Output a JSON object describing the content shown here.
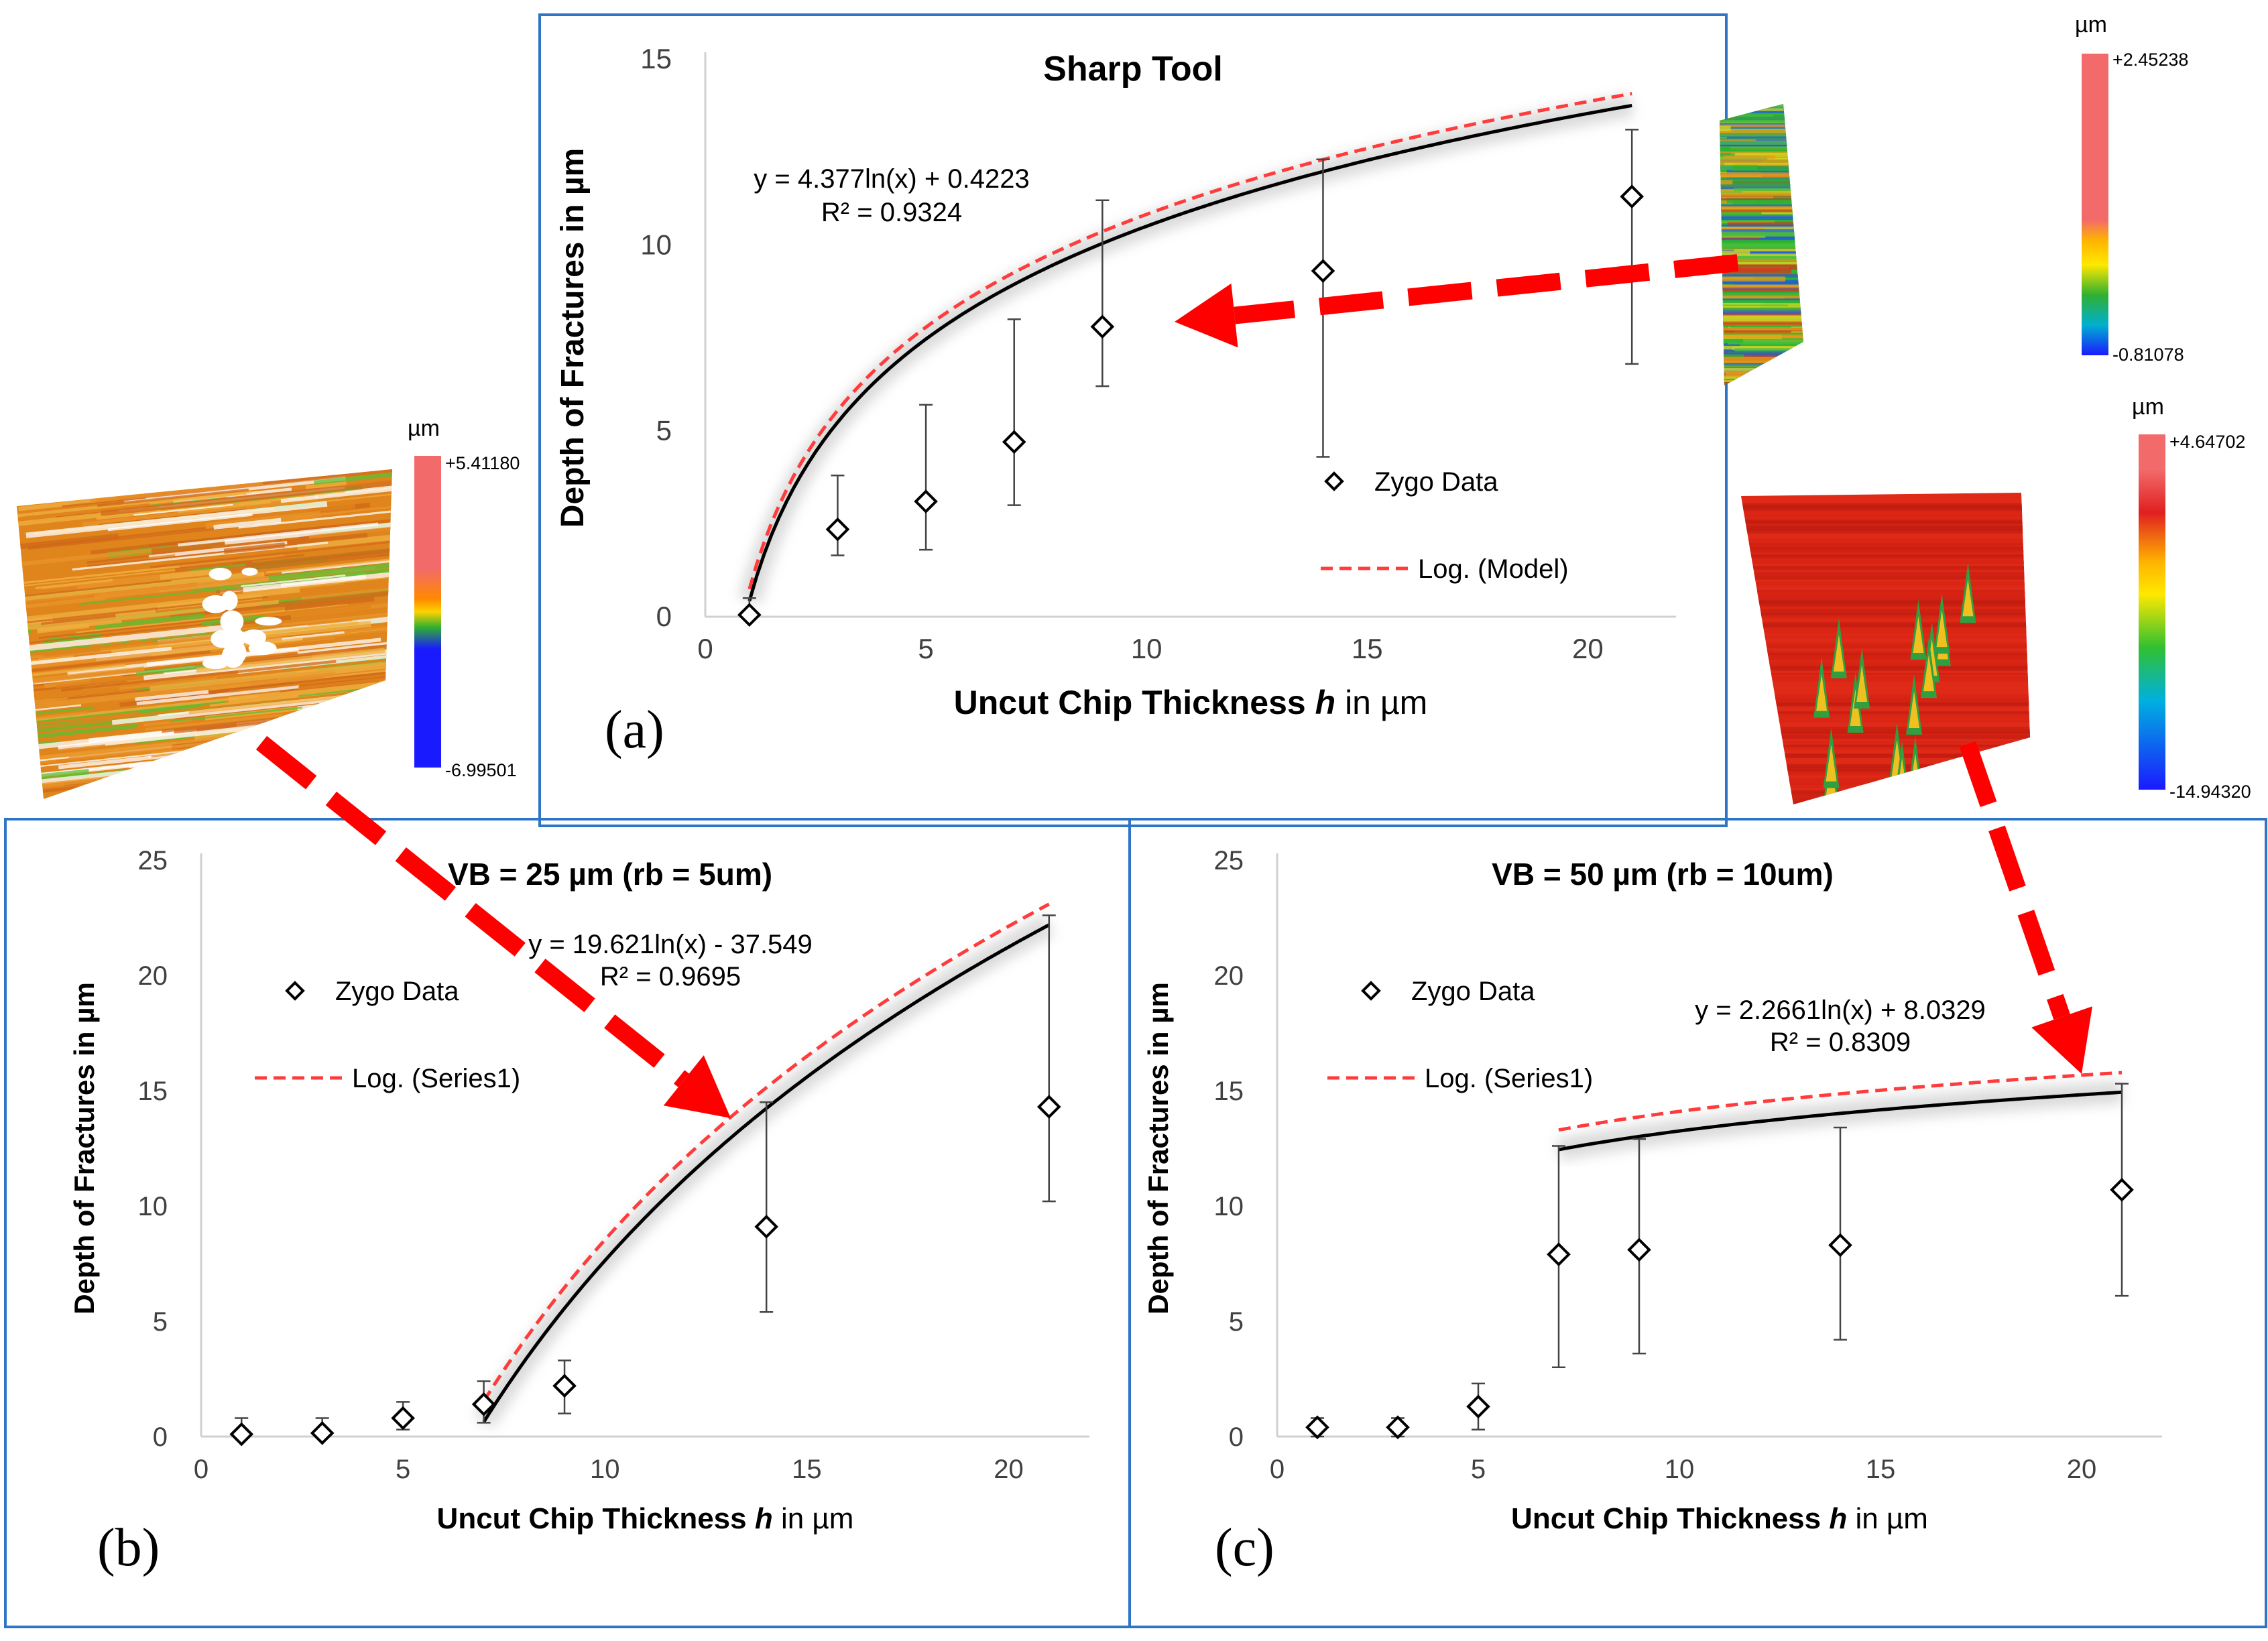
{
  "chart_data": [
    {
      "panel_label": "(a)",
      "type": "scatter",
      "title": "Sharp Tool",
      "xlabel_prefix": "Uncut Chip Thickness ",
      "xlabel_var": "h",
      "xlabel_suffix": " in µm",
      "ylabel": "Depth of Fractures in µm",
      "xlim": [
        0,
        22
      ],
      "ylim": [
        0,
        15
      ],
      "xticks": [
        0,
        5,
        10,
        15,
        20
      ],
      "yticks": [
        0,
        5,
        10,
        15
      ],
      "grid": false,
      "series": [
        {
          "name": "Zygo Data",
          "x": [
            1,
            3,
            5,
            7,
            9,
            14,
            21
          ],
          "y": [
            0.05,
            2.35,
            3.1,
            4.7,
            7.8,
            9.3,
            11.3
          ],
          "err_low": [
            0.05,
            1.65,
            1.8,
            3.0,
            6.2,
            4.3,
            6.8
          ],
          "err_high": [
            0.5,
            3.8,
            5.7,
            8.0,
            11.2,
            12.3,
            13.1
          ]
        }
      ],
      "fit": {
        "a": 4.377,
        "b": 0.4223,
        "x_from": 1,
        "x_to": 21,
        "model_offset": 0.32
      },
      "model_name": "Log. (Model)",
      "equation": "y = 4.377ln(x) + 0.4223",
      "r2": "R² = 0.9324",
      "inset": {
        "unit": "µm",
        "max": "+2.45238",
        "min": "-0.81078",
        "bar_colors": [
          "#f26a6a",
          "#f26a6a",
          "#ffb400",
          "#ffe800",
          "#30b030",
          "#00b0d0",
          "#1a1aff"
        ],
        "surface_colors": [
          "#2fb32f",
          "#49c240",
          "#d8d820",
          "#e89a18",
          "#d03a1c",
          "#1c5fd8"
        ]
      }
    },
    {
      "panel_label": "(b)",
      "type": "scatter",
      "title": "VB = 25 µm (rb = 5um)",
      "xlabel_prefix": "Uncut Chip Thickness ",
      "xlabel_var": "h",
      "xlabel_suffix": " in µm",
      "ylabel": "Depth of Fractures in µm",
      "xlim": [
        0,
        22
      ],
      "ylim": [
        0,
        25
      ],
      "xticks": [
        0,
        5,
        10,
        15,
        20
      ],
      "yticks": [
        0,
        5,
        10,
        15,
        20,
        25
      ],
      "grid": false,
      "series": [
        {
          "name": "Zygo Data",
          "x": [
            1,
            3,
            5,
            7,
            9,
            14,
            21
          ],
          "y": [
            0.1,
            0.15,
            0.8,
            1.4,
            2.2,
            9.1,
            14.3
          ],
          "err_low": [
            0.0,
            0.0,
            0.3,
            0.6,
            1.0,
            5.4,
            10.2
          ],
          "err_high": [
            0.8,
            0.8,
            1.5,
            2.4,
            3.3,
            14.5,
            22.6
          ]
        }
      ],
      "fit": {
        "a": 19.621,
        "b": -37.549,
        "x_from": 7,
        "x_to": 21,
        "model_offset": 0.9
      },
      "model_name": "Log. (Series1)",
      "equation": "y = 19.621ln(x) - 37.549",
      "r2": "R² = 0.9695",
      "inset": {
        "unit": "µm",
        "max": "+5.41180",
        "min": "-6.99501",
        "bar_colors": [
          "#f26a6a",
          "#f26a6a",
          "#ff8a00",
          "#ffd200",
          "#30b030",
          "#1a1aff",
          "#1a1aff"
        ],
        "surface_colors": [
          "#e0841c",
          "#e8942a",
          "#d06818",
          "#5cbf30",
          "#f0b040",
          "#ffffff"
        ]
      }
    },
    {
      "panel_label": "(c)",
      "type": "scatter",
      "title": "VB = 50 µm (rb = 10um)",
      "xlabel_prefix": "Uncut Chip Thickness ",
      "xlabel_var": "h",
      "xlabel_suffix": " in µm",
      "ylabel": "Depth of Fractures in µm",
      "xlim": [
        0,
        22
      ],
      "ylim": [
        0,
        25
      ],
      "xticks": [
        0,
        5,
        10,
        15,
        20
      ],
      "yticks": [
        0,
        5,
        10,
        15,
        20,
        25
      ],
      "grid": false,
      "series": [
        {
          "name": "Zygo Data",
          "x": [
            1,
            3,
            5,
            7,
            9,
            14,
            21
          ],
          "y": [
            0.4,
            0.4,
            1.3,
            7.9,
            8.1,
            8.3,
            10.7
          ],
          "err_low": [
            0.0,
            0.0,
            0.3,
            3.0,
            3.6,
            4.2,
            6.1
          ],
          "err_high": [
            0.8,
            0.8,
            2.3,
            12.6,
            12.9,
            13.4,
            15.3
          ]
        }
      ],
      "fit": {
        "a": 2.2661,
        "b": 8.0329,
        "x_from": 7,
        "x_to": 21,
        "model_offset": 0.85
      },
      "model_name": "Log. (Series1)",
      "equation": "y = 2.2661ln(x) + 8.0329",
      "r2": "R² = 0.8309",
      "inset": {
        "unit": "µm",
        "max": "+4.64702",
        "min": "-14.94320",
        "bar_colors": [
          "#f26a6a",
          "#f26a6a",
          "#e02020",
          "#ffb400",
          "#ffe800",
          "#30c030",
          "#00b0e0",
          "#1a1aff"
        ],
        "surface_colors": [
          "#e02a18",
          "#d82414",
          "#c01c10",
          "#2f9f3f",
          "#f0c020",
          "#1c6fd8"
        ]
      }
    }
  ],
  "colors": {
    "frame": "#2e75c7",
    "fit_line": "#000000",
    "model_line": "#ff3b3b",
    "arrow": "#ff0000",
    "axis": "#d0d0d0",
    "tick_text": "#404040"
  }
}
